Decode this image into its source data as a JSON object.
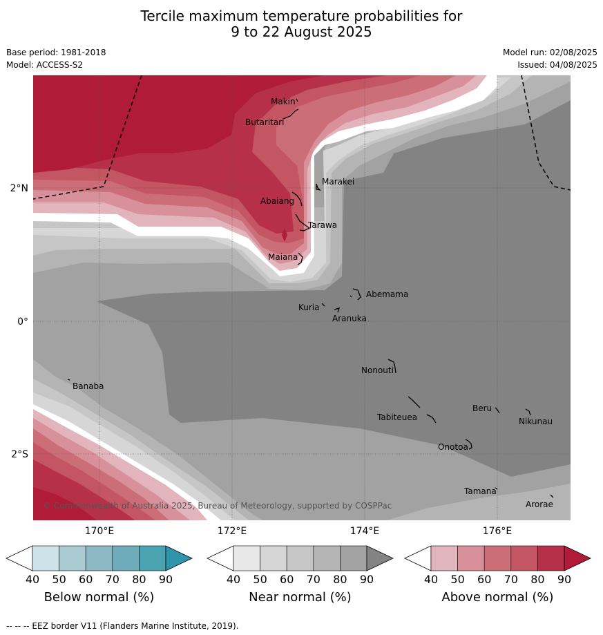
{
  "title_line1": "Tercile maximum temperature probabilities for",
  "title_line2": "9 to 22 August 2025",
  "base_period": "Base period: 1981-2018",
  "model": "Model: ACCESS-S2",
  "model_run": "Model run: 02/08/2025",
  "issued": "Issued: 04/08/2025",
  "copyright": "© Commonwealth of Australia 2025, Bureau of Meteorology, supported by COSPPac",
  "lat_labels": [
    "2°N",
    "0°",
    "2°S"
  ],
  "lon_labels": [
    "170°E",
    "172°E",
    "174°E",
    "176°E"
  ],
  "places": [
    "Makin",
    "Butaritari",
    "Marakei",
    "Abaiang",
    "Tarawa",
    "Maiana",
    "Abemama",
    "Kuria",
    "Aranuka",
    "Nonouti",
    "Banaba",
    "Beru",
    "Nikunau",
    "Tabiteuea",
    "Onotoa",
    "Tamana",
    "Arorae"
  ],
  "colorbars": [
    {
      "label": "Below normal (%)",
      "ticks": [
        "40",
        "50",
        "60",
        "70",
        "80",
        "90"
      ],
      "colors": [
        "#ffffff",
        "#cde3ea",
        "#abcbd2",
        "#8db9c4",
        "#6eabbb",
        "#4ba3b2",
        "#2f95aa"
      ]
    },
    {
      "label": "Near normal (%)",
      "ticks": [
        "40",
        "50",
        "60",
        "70",
        "80",
        "90"
      ],
      "colors": [
        "#ffffff",
        "#e8e8e8",
        "#d6d6d6",
        "#c6c6c6",
        "#b4b4b4",
        "#a2a2a2",
        "#838383"
      ]
    },
    {
      "label": "Above normal (%)",
      "ticks": [
        "40",
        "50",
        "60",
        "70",
        "80",
        "90"
      ],
      "colors": [
        "#ffffff",
        "#e2b5bd",
        "#d8909a",
        "#cc6e78",
        "#c45562",
        "#b7304a",
        "#b01c38"
      ]
    }
  ],
  "footer": "--  --  -- EEZ border V11 (Flanders Marine Institute, 2019)."
}
